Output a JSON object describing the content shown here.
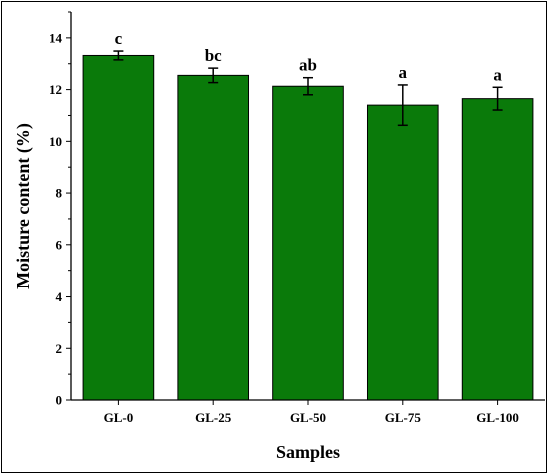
{
  "chart_data": {
    "type": "bar",
    "title": "",
    "xlabel": "Samples",
    "ylabel": "Moisture content (%)",
    "categories": [
      "GL-0",
      "GL-25",
      "GL-50",
      "GL-75",
      "GL-100"
    ],
    "values": [
      13.32,
      12.55,
      12.13,
      11.4,
      11.65
    ],
    "errors": [
      0.17,
      0.28,
      0.33,
      0.78,
      0.44
    ],
    "significance_labels": [
      "c",
      "bc",
      "ab",
      "a",
      "a"
    ],
    "ylim": [
      0,
      15
    ],
    "yticks": [
      0,
      2,
      4,
      6,
      8,
      10,
      12,
      14
    ],
    "bar_color": "#0a7a0a",
    "grid": false,
    "legend": false
  }
}
